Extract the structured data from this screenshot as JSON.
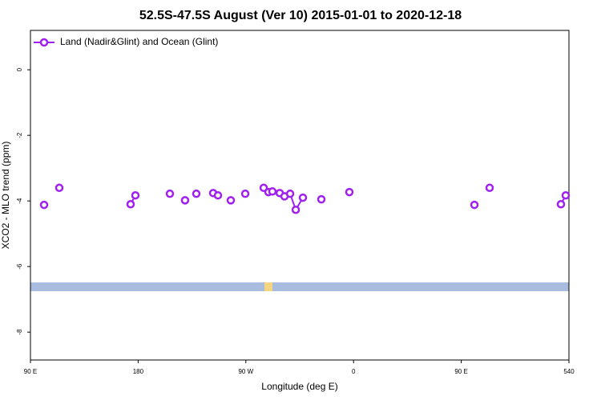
{
  "chart_data": {
    "type": "line",
    "title": "52.5S-47.5S August (Ver 10)   2015-01-01 to 2020-12-18",
    "x_label": "Longitude (deg E)",
    "y_label": "XCO2 - MLO trend (ppm)",
    "xlim": [
      90,
      540
    ],
    "xticks": [
      {
        "value": 90,
        "label": "90 E"
      },
      180,
      {
        "value": 270,
        "label": "90 W"
      },
      {
        "value": 360,
        "label": "0"
      },
      {
        "value": 450,
        "label": "90 E"
      },
      540
    ],
    "ylim": [
      -8.85,
      1.2
    ],
    "yticks": [
      0,
      -2,
      -4,
      -6,
      -8
    ],
    "legend": "top-left",
    "series": [
      {
        "name": "Land (Nadir&Glint) and Ocean (Glint)",
        "color": "#a020f0",
        "x": [
          101.4,
          null,
          114.1,
          null,
          173.7,
          177.7,
          null,
          206.5,
          null,
          219.2,
          null,
          228.6,
          null,
          242.7,
          null,
          246.7,
          null,
          257.4,
          null,
          269.5,
          null,
          284.9,
          288.9,
          292.2,
          298.3,
          302.3,
          307,
          311.7,
          317.7,
          null,
          333.1,
          null,
          356.5,
          null,
          461,
          null,
          473.7,
          null,
          533.3,
          537.3
        ],
        "values": [
          -4.12,
          null,
          -3.6,
          null,
          -4.1,
          -3.83,
          null,
          -3.78,
          null,
          -3.98,
          null,
          -3.78,
          null,
          -3.76,
          null,
          -3.83,
          null,
          -3.98,
          null,
          -3.78,
          null,
          -3.6,
          -3.73,
          -3.71,
          -3.76,
          -3.86,
          -3.78,
          -4.27,
          -3.9,
          null,
          -3.95,
          null,
          -3.73,
          null,
          -4.12,
          null,
          -3.6,
          null,
          -4.1,
          -3.83
        ]
      }
    ]
  }
}
